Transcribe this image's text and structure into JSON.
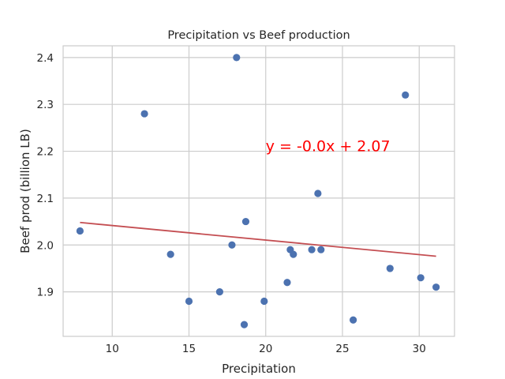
{
  "chart_data": {
    "type": "scatter",
    "title": "Precipitation vs Beef production",
    "xlabel": "Precipitation",
    "ylabel": "Beef prod (billion LB)",
    "xlim": [
      6.8,
      32.3
    ],
    "ylim": [
      1.805,
      2.425
    ],
    "xticks": [
      10,
      15,
      20,
      25,
      30
    ],
    "yticks": [
      1.9,
      2.0,
      2.1,
      2.2,
      2.3,
      2.4
    ],
    "grid": true,
    "series": [
      {
        "type": "scatter",
        "color": "#4c72b0",
        "points": [
          {
            "x": 7.9,
            "y": 2.03
          },
          {
            "x": 12.1,
            "y": 2.28
          },
          {
            "x": 13.8,
            "y": 1.98
          },
          {
            "x": 15.0,
            "y": 1.88
          },
          {
            "x": 17.0,
            "y": 1.9
          },
          {
            "x": 17.8,
            "y": 2.0
          },
          {
            "x": 18.1,
            "y": 2.4
          },
          {
            "x": 18.6,
            "y": 1.83
          },
          {
            "x": 18.7,
            "y": 2.05
          },
          {
            "x": 19.9,
            "y": 1.88
          },
          {
            "x": 21.4,
            "y": 1.92
          },
          {
            "x": 21.6,
            "y": 1.99
          },
          {
            "x": 21.8,
            "y": 1.98
          },
          {
            "x": 23.0,
            "y": 1.99
          },
          {
            "x": 23.4,
            "y": 2.11
          },
          {
            "x": 23.6,
            "y": 1.99
          },
          {
            "x": 25.7,
            "y": 1.84
          },
          {
            "x": 28.1,
            "y": 1.95
          },
          {
            "x": 29.1,
            "y": 2.32
          },
          {
            "x": 30.1,
            "y": 1.93
          },
          {
            "x": 31.1,
            "y": 1.91
          }
        ]
      },
      {
        "type": "line",
        "color": "#c44e52",
        "x": [
          7.9,
          31.1
        ],
        "y": [
          2.048,
          1.976
        ]
      }
    ],
    "annotation": {
      "text": "y = -0.0x + 2.07",
      "x": 20.0,
      "y": 2.2,
      "color": "#ff0000"
    }
  }
}
